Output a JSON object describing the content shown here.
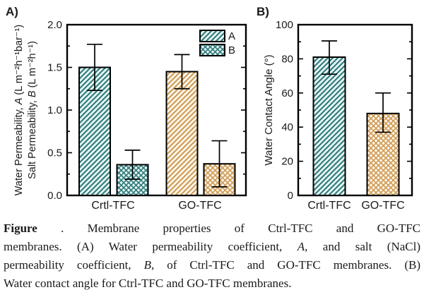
{
  "colors": {
    "teal_line": "#2e7a7a",
    "teal_bg": "#e8f5f5",
    "orange_line": "#d09a55",
    "orange_bg": "#fdf8ec",
    "axis": "#000000",
    "text": "#1a1a1a"
  },
  "chart_data": [
    {
      "type": "bar",
      "panel_label": "A)",
      "ylabel_lines": [
        [
          {
            "t": "Water Permeability, "
          },
          {
            "t": "A",
            "i": true
          },
          {
            "t": " (L m⁻²h⁻¹bar⁻¹)"
          }
        ],
        [
          {
            "t": "Salt Permeability, "
          },
          {
            "t": "B",
            "i": true
          },
          {
            "t": " (L m⁻²h⁻¹)"
          }
        ]
      ],
      "ylim": [
        0,
        2.0
      ],
      "ytick_major": 0.5,
      "ytick_minor": 0.25,
      "ytick_decimals": 1,
      "categories": [
        "Crtl-TFC",
        "GO-TFC"
      ],
      "series": [
        {
          "name": "A",
          "values": [
            1.5,
            1.45
          ],
          "error_ranges": [
            [
              1.23,
              1.77
            ],
            [
              1.25,
              1.65
            ]
          ],
          "patterns": [
            "teal-diag",
            "orange-diag"
          ]
        },
        {
          "name": "B",
          "values": [
            0.36,
            0.37
          ],
          "error_ranges": [
            [
              0.19,
              0.53
            ],
            [
              0.1,
              0.64
            ]
          ],
          "patterns": [
            "teal-cross",
            "orange-cross"
          ]
        }
      ],
      "legend": [
        {
          "label": "A",
          "pattern": "teal-diag"
        },
        {
          "label": "B",
          "pattern": "teal-cross"
        }
      ],
      "legend_position": "top-right"
    },
    {
      "type": "bar",
      "panel_label": "B)",
      "ylabel_lines": [
        [
          {
            "t": "Water Contact Angle (°)"
          }
        ]
      ],
      "ylim": [
        0,
        100
      ],
      "ytick_major": 20,
      "ytick_minor": 10,
      "ytick_decimals": 0,
      "categories": [
        "Crtl-TFC",
        "GO-TFC"
      ],
      "series": [
        {
          "name": "value",
          "values": [
            81,
            48
          ],
          "error_ranges": [
            [
              71,
              90.5
            ],
            [
              37,
              60
            ]
          ],
          "patterns": [
            "teal-diag",
            "orange-cross"
          ]
        }
      ]
    }
  ],
  "caption": {
    "line1": {
      "bold": "Figure",
      "rest": " . Membrane properties of Ctrl-TFC and GO-TFC"
    },
    "line2": {
      "pre": "membranes. (A) Water permeability coefficient, ",
      "italic": "A",
      "post": ", and salt (NaCl)"
    },
    "line3": {
      "pre": "permeability coefficient, ",
      "italic": "B",
      "post": ", of Ctrl-TFC and GO-TFC membranes. (B)"
    },
    "line4": {
      "text": "Water contact angle for Ctrl-TFC and GO-TFC membranes."
    }
  }
}
